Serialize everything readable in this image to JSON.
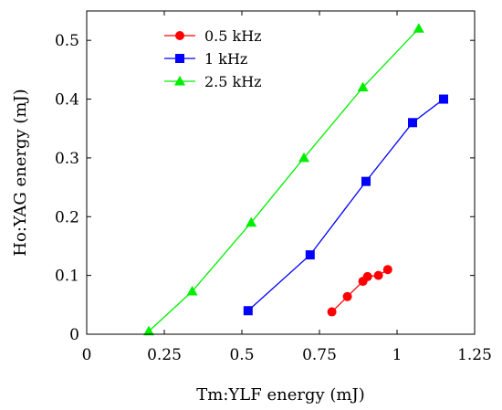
{
  "chart_data": {
    "type": "line",
    "xlabel": "Tm:YLF energy (mJ)",
    "ylabel": "Ho:YAG energy (mJ)",
    "xlim": [
      0,
      1.25
    ],
    "ylim": [
      0,
      0.55
    ],
    "xticks": [
      0,
      0.25,
      0.5,
      0.75,
      1,
      1.25
    ],
    "xtick_labels": [
      "0",
      "0.25",
      "0.5",
      "0.75",
      "1",
      "1.25"
    ],
    "yticks": [
      0,
      0.1,
      0.2,
      0.3,
      0.4,
      0.5
    ],
    "ytick_labels": [
      "0",
      "0.1",
      "0.2",
      "0.3",
      "0.4",
      "0.5"
    ],
    "grid": false,
    "legend_position": "top-left",
    "series": [
      {
        "name": "0.5 kHz",
        "color": "#ff0000",
        "marker": "circle",
        "x": [
          0.79,
          0.84,
          0.89,
          0.905,
          0.94,
          0.97
        ],
        "y": [
          0.038,
          0.064,
          0.09,
          0.098,
          0.1,
          0.11
        ]
      },
      {
        "name": "1 kHz",
        "color": "#0000ff",
        "marker": "square",
        "x": [
          0.52,
          0.72,
          0.9,
          1.05,
          1.15
        ],
        "y": [
          0.04,
          0.135,
          0.26,
          0.36,
          0.4
        ]
      },
      {
        "name": "2.5 kHz",
        "color": "#00ee00",
        "marker": "triangle",
        "x": [
          0.2,
          0.34,
          0.53,
          0.7,
          0.89,
          1.07
        ],
        "y": [
          0.005,
          0.073,
          0.19,
          0.3,
          0.42,
          0.52
        ]
      }
    ]
  }
}
